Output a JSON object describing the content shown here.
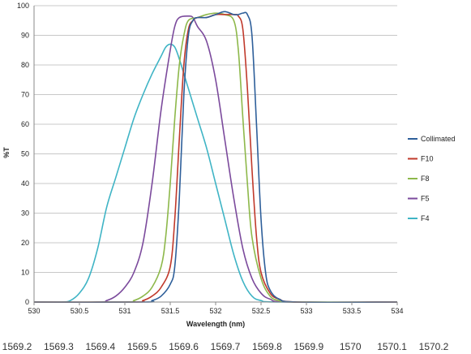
{
  "chart_data": {
    "type": "line",
    "xlabel": "Wavelength (nm)",
    "ylabel": "%T",
    "xlim": [
      530,
      534
    ],
    "ylim": [
      0,
      100
    ],
    "grid": "horizontal",
    "legend_position": "right",
    "x_ticks": [
      "530",
      "530.5",
      "531",
      "531.5",
      "532",
      "532.5",
      "533",
      "533.5",
      "534"
    ],
    "y_ticks": [
      "0",
      "10",
      "20",
      "30",
      "40",
      "50",
      "60",
      "70",
      "80",
      "90",
      "100"
    ],
    "secondary_x_ticks": [
      "1569.2",
      "1569.3",
      "1569.4",
      "1569.5",
      "1569.6",
      "1569.7",
      "1569.8",
      "1569.9",
      "1570",
      "1570.1",
      "1570.2"
    ],
    "series": [
      {
        "name": "Collimated",
        "color": "#2e5f9a",
        "points": [
          [
            530,
            0
          ],
          [
            531.2,
            0
          ],
          [
            531.3,
            0.5
          ],
          [
            531.4,
            2
          ],
          [
            531.5,
            6
          ],
          [
            531.55,
            12
          ],
          [
            531.6,
            35
          ],
          [
            531.65,
            70
          ],
          [
            531.7,
            90
          ],
          [
            531.75,
            95
          ],
          [
            531.8,
            96
          ],
          [
            531.9,
            96
          ],
          [
            532.0,
            97
          ],
          [
            532.1,
            98
          ],
          [
            532.2,
            97
          ],
          [
            532.25,
            97
          ],
          [
            532.3,
            97.5
          ],
          [
            532.35,
            97
          ],
          [
            532.4,
            90
          ],
          [
            532.45,
            60
          ],
          [
            532.5,
            28
          ],
          [
            532.55,
            10
          ],
          [
            532.6,
            4
          ],
          [
            532.7,
            1
          ],
          [
            532.9,
            0
          ],
          [
            534,
            0
          ]
        ]
      },
      {
        "name": "F10",
        "color": "#c0392b",
        "points": [
          [
            530,
            0
          ],
          [
            531.1,
            0
          ],
          [
            531.2,
            0.5
          ],
          [
            531.3,
            2
          ],
          [
            531.4,
            5
          ],
          [
            531.5,
            12
          ],
          [
            531.55,
            28
          ],
          [
            531.6,
            55
          ],
          [
            531.65,
            80
          ],
          [
            531.7,
            92
          ],
          [
            531.75,
            95
          ],
          [
            531.8,
            96
          ],
          [
            531.9,
            96
          ],
          [
            532.0,
            97
          ],
          [
            532.1,
            97
          ],
          [
            532.2,
            97
          ],
          [
            532.25,
            96.5
          ],
          [
            532.3,
            92
          ],
          [
            532.35,
            72
          ],
          [
            532.4,
            45
          ],
          [
            532.45,
            22
          ],
          [
            532.5,
            10
          ],
          [
            532.6,
            3
          ],
          [
            532.7,
            1
          ],
          [
            532.9,
            0
          ],
          [
            534,
            0
          ]
        ]
      },
      {
        "name": "F8",
        "color": "#8db84a",
        "points": [
          [
            530,
            0
          ],
          [
            531.0,
            0
          ],
          [
            531.1,
            0.5
          ],
          [
            531.2,
            2
          ],
          [
            531.3,
            5
          ],
          [
            531.4,
            12
          ],
          [
            531.45,
            22
          ],
          [
            531.5,
            40
          ],
          [
            531.55,
            62
          ],
          [
            531.6,
            80
          ],
          [
            531.65,
            90
          ],
          [
            531.7,
            95
          ],
          [
            531.8,
            96
          ],
          [
            531.9,
            97
          ],
          [
            532.0,
            97.5
          ],
          [
            532.1,
            97
          ],
          [
            532.2,
            95
          ],
          [
            532.25,
            85
          ],
          [
            532.3,
            62
          ],
          [
            532.35,
            40
          ],
          [
            532.4,
            22
          ],
          [
            532.5,
            8
          ],
          [
            532.6,
            2
          ],
          [
            532.7,
            0.5
          ],
          [
            532.9,
            0
          ],
          [
            534,
            0
          ]
        ]
      },
      {
        "name": "F5",
        "color": "#7b4a9c",
        "points": [
          [
            530,
            0
          ],
          [
            530.7,
            0
          ],
          [
            530.8,
            0.5
          ],
          [
            530.9,
            2
          ],
          [
            531.0,
            5
          ],
          [
            531.1,
            10
          ],
          [
            531.2,
            20
          ],
          [
            531.3,
            40
          ],
          [
            531.4,
            65
          ],
          [
            531.5,
            85
          ],
          [
            531.55,
            93
          ],
          [
            531.6,
            96
          ],
          [
            531.7,
            96.5
          ],
          [
            531.75,
            96
          ],
          [
            531.8,
            93
          ],
          [
            531.9,
            88
          ],
          [
            532.0,
            75
          ],
          [
            532.1,
            55
          ],
          [
            532.2,
            35
          ],
          [
            532.3,
            18
          ],
          [
            532.4,
            8
          ],
          [
            532.5,
            3
          ],
          [
            532.6,
            1
          ],
          [
            532.8,
            0
          ],
          [
            534,
            0
          ]
        ]
      },
      {
        "name": "F4",
        "color": "#3fb4c5",
        "points": [
          [
            530,
            0
          ],
          [
            530.3,
            0
          ],
          [
            530.4,
            0.5
          ],
          [
            530.5,
            3
          ],
          [
            530.6,
            8
          ],
          [
            530.7,
            18
          ],
          [
            530.8,
            32
          ],
          [
            530.9,
            42
          ],
          [
            531.0,
            52
          ],
          [
            531.1,
            62
          ],
          [
            531.2,
            70
          ],
          [
            531.3,
            77
          ],
          [
            531.4,
            83
          ],
          [
            531.45,
            86
          ],
          [
            531.5,
            87
          ],
          [
            531.55,
            86
          ],
          [
            531.6,
            82
          ],
          [
            531.7,
            72
          ],
          [
            531.8,
            62
          ],
          [
            531.9,
            52
          ],
          [
            532.0,
            40
          ],
          [
            532.1,
            28
          ],
          [
            532.2,
            16
          ],
          [
            532.3,
            7
          ],
          [
            532.4,
            2
          ],
          [
            532.5,
            0.5
          ],
          [
            532.7,
            0
          ],
          [
            534,
            0
          ]
        ]
      }
    ]
  }
}
